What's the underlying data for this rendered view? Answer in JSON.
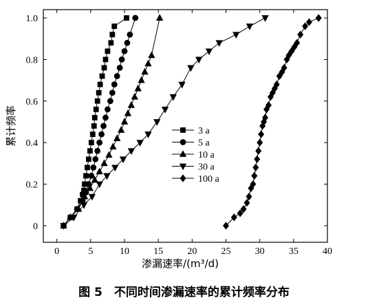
{
  "caption": "图 5　不同时间渗漏速率的累计频率分布",
  "chart_data": {
    "type": "scatter",
    "title": "",
    "xlabel": "渗漏速率/(m³/d)",
    "ylabel": "累计频率",
    "xlim": [
      -2,
      40
    ],
    "ylim": [
      -0.08,
      1.04
    ],
    "xticks": [
      "0",
      "5",
      "10",
      "15",
      "20",
      "25",
      "30",
      "35",
      "40"
    ],
    "yticks": [
      "0",
      "0.2",
      "0.4",
      "0.6",
      "0.8",
      "1.0"
    ],
    "legend_position": "center",
    "series": [
      {
        "name": "3 a",
        "marker": "square",
        "x": [
          1.0,
          2.0,
          3.0,
          3.5,
          3.8,
          4.0,
          4.1,
          4.3,
          4.5,
          4.7,
          4.9,
          5.1,
          5.3,
          5.5,
          5.6,
          5.8,
          6.0,
          6.2,
          6.4,
          6.7,
          7.0,
          7.2,
          7.5,
          8.0,
          8.2,
          8.5,
          10.3
        ],
        "y": [
          0.0,
          0.04,
          0.08,
          0.12,
          0.15,
          0.17,
          0.2,
          0.24,
          0.28,
          0.32,
          0.36,
          0.4,
          0.44,
          0.48,
          0.52,
          0.56,
          0.6,
          0.64,
          0.68,
          0.72,
          0.76,
          0.8,
          0.84,
          0.88,
          0.92,
          0.96,
          1.0
        ]
      },
      {
        "name": "5 a",
        "marker": "circle",
        "x": [
          1.0,
          2.0,
          3.0,
          3.8,
          4.3,
          4.7,
          5.1,
          5.4,
          5.7,
          6.0,
          6.3,
          6.6,
          6.9,
          7.2,
          7.5,
          7.9,
          8.2,
          8.5,
          8.9,
          9.3,
          9.6,
          10.0,
          10.4,
          10.8,
          11.6
        ],
        "y": [
          0.0,
          0.04,
          0.08,
          0.12,
          0.16,
          0.2,
          0.24,
          0.28,
          0.32,
          0.36,
          0.4,
          0.44,
          0.48,
          0.52,
          0.56,
          0.6,
          0.64,
          0.68,
          0.72,
          0.76,
          0.8,
          0.84,
          0.88,
          0.92,
          1.0
        ]
      },
      {
        "name": "10 a",
        "marker": "triangle-up",
        "x": [
          1.0,
          2.0,
          3.2,
          4.1,
          4.9,
          5.6,
          6.3,
          7.0,
          7.7,
          8.3,
          8.9,
          9.5,
          10.0,
          10.5,
          11.0,
          11.5,
          12.0,
          12.5,
          13.0,
          13.5,
          14.0,
          15.2
        ],
        "y": [
          0.0,
          0.04,
          0.08,
          0.14,
          0.18,
          0.22,
          0.26,
          0.3,
          0.34,
          0.38,
          0.42,
          0.46,
          0.5,
          0.54,
          0.58,
          0.62,
          0.66,
          0.7,
          0.74,
          0.78,
          0.82,
          1.0
        ]
      },
      {
        "name": "30 a",
        "marker": "triangle-down",
        "x": [
          1.0,
          2.5,
          4.0,
          5.2,
          6.3,
          7.4,
          8.6,
          9.8,
          11.0,
          12.3,
          13.5,
          14.8,
          16.0,
          17.2,
          18.5,
          19.8,
          21.0,
          22.5,
          24.0,
          26.5,
          28.5,
          30.8
        ],
        "y": [
          0.0,
          0.04,
          0.1,
          0.14,
          0.2,
          0.24,
          0.28,
          0.32,
          0.36,
          0.4,
          0.44,
          0.5,
          0.56,
          0.62,
          0.68,
          0.76,
          0.8,
          0.84,
          0.88,
          0.92,
          0.96,
          1.0
        ]
      },
      {
        "name": "100 a",
        "marker": "diamond",
        "x": [
          25.0,
          26.2,
          27.1,
          27.6,
          28.1,
          28.4,
          28.7,
          29.0,
          29.2,
          29.4,
          29.6,
          29.8,
          30.0,
          30.2,
          30.4,
          30.6,
          30.8,
          31.0,
          31.3,
          31.6,
          31.9,
          32.2,
          32.5,
          32.9,
          33.3,
          33.6,
          34.0,
          34.3,
          34.7,
          35.1,
          35.5,
          36.0,
          36.7,
          37.3,
          38.7
        ],
        "y": [
          0.0,
          0.04,
          0.06,
          0.08,
          0.11,
          0.14,
          0.18,
          0.2,
          0.24,
          0.28,
          0.32,
          0.36,
          0.4,
          0.44,
          0.48,
          0.5,
          0.52,
          0.56,
          0.58,
          0.62,
          0.64,
          0.66,
          0.68,
          0.72,
          0.74,
          0.76,
          0.8,
          0.82,
          0.84,
          0.86,
          0.88,
          0.92,
          0.96,
          0.98,
          1.0
        ]
      }
    ]
  }
}
